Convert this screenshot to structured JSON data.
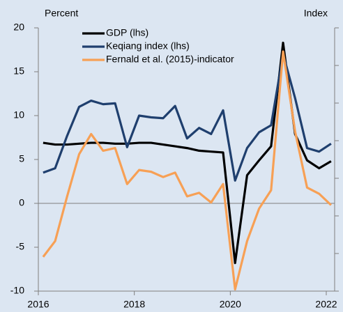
{
  "chart_data": {
    "type": "line",
    "y_label": "Percent",
    "y2_label": "Index",
    "x": [
      2016.1,
      2016.35,
      2016.6,
      2016.85,
      2017.1,
      2017.35,
      2017.6,
      2017.85,
      2018.1,
      2018.35,
      2018.6,
      2018.85,
      2019.1,
      2019.35,
      2019.6,
      2019.85,
      2020.1,
      2020.35,
      2020.6,
      2020.85,
      2021.1,
      2021.35,
      2021.6,
      2021.85,
      2022.1
    ],
    "series": [
      {
        "name": "GDP (lhs)",
        "color": "#000000",
        "values": [
          6.9,
          6.7,
          6.7,
          6.8,
          6.9,
          6.9,
          6.8,
          6.8,
          6.9,
          6.9,
          6.7,
          6.5,
          6.3,
          6.0,
          5.9,
          5.8,
          -6.8,
          3.2,
          4.9,
          6.5,
          18.3,
          7.9,
          4.9,
          4.0,
          4.8
        ]
      },
      {
        "name": "Keqiang index (lhs)",
        "color": "#1f3f6e",
        "values": [
          3.5,
          4.0,
          7.7,
          11.0,
          11.7,
          11.3,
          11.4,
          6.4,
          10.0,
          9.8,
          9.7,
          11.1,
          7.4,
          8.6,
          7.9,
          10.6,
          2.6,
          6.3,
          8.1,
          8.9,
          17.0,
          12.0,
          6.3,
          5.9,
          6.8
        ]
      },
      {
        "name": "Fernald et al. (2015)-indicator",
        "color": "#f7a055",
        "values": [
          -6.1,
          -4.3,
          0.8,
          5.6,
          7.9,
          6.0,
          6.3,
          2.2,
          3.8,
          3.6,
          3.0,
          3.5,
          0.8,
          1.2,
          0.1,
          2.2,
          -9.8,
          -4.3,
          -0.6,
          1.5,
          17.3,
          8.2,
          1.8,
          1.1,
          -0.2
        ]
      }
    ],
    "xlim": [
      2016,
      2022
    ],
    "xticks": [
      2016,
      2018,
      2020,
      2022
    ],
    "ylim": [
      -10,
      20
    ],
    "yticks": [
      -10,
      -5,
      0,
      5,
      10,
      15,
      20
    ]
  }
}
